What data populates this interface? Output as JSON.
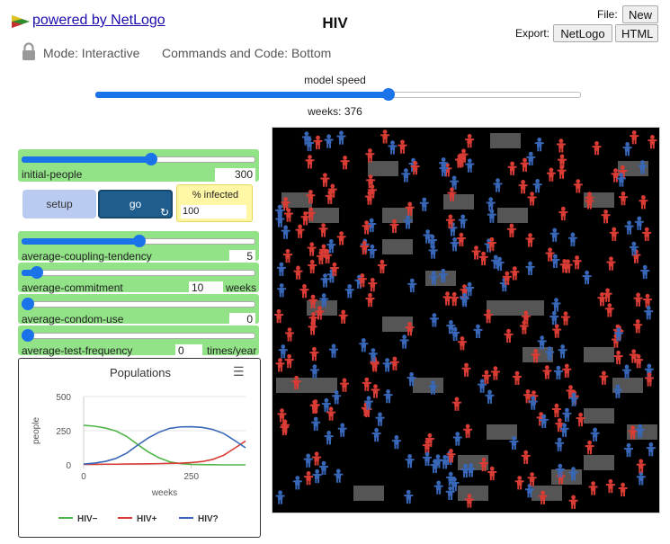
{
  "header": {
    "powered_by": "powered by NetLogo",
    "title": "HIV",
    "file_label": "File:",
    "new_label": "New",
    "export_label": "Export:",
    "export_netlogo": "NetLogo",
    "export_html": "HTML",
    "mode": "Mode: Interactive",
    "commands": "Commands and Code: Bottom"
  },
  "speed": {
    "label": "model speed",
    "ticks_text": "weeks: 376",
    "value_fraction": 0.61
  },
  "sliders": [
    {
      "name": "initial-people",
      "value": "300",
      "unit": "",
      "fraction": 0.56
    },
    {
      "name": "average-coupling-tendency",
      "value": "5",
      "unit": "",
      "fraction": 0.5
    },
    {
      "name": "average-commitment",
      "value": "10",
      "unit": "weeks",
      "fraction": 0.05
    },
    {
      "name": "average-condom-use",
      "value": "0",
      "unit": "",
      "fraction": 0.0
    },
    {
      "name": "average-test-frequency",
      "value": "0",
      "unit": "times/year",
      "fraction": 0.0
    }
  ],
  "buttons": {
    "setup": "setup",
    "go": "go",
    "go_icon": "forever-icon"
  },
  "monitor": {
    "label": "% infected",
    "value": "100"
  },
  "colors": {
    "slider_bg": "#92e287",
    "accent": "#1a73e8",
    "hiv_neg": "#50b548",
    "hiv_pos": "#d93c35",
    "hiv_unknown": "#3867b8",
    "patch_couple": "#555555"
  },
  "chart_data": {
    "type": "line",
    "title": "Populations",
    "xlabel": "weeks",
    "ylabel": "people",
    "xlim": [
      0,
      376
    ],
    "ylim": [
      0,
      500
    ],
    "x_ticks": [
      "0",
      "250"
    ],
    "y_ticks": [
      "500",
      "250",
      "0"
    ],
    "legend_position": "bottom",
    "series": [
      {
        "name": "HIV−",
        "color": "#50b548",
        "x": [
          0,
          25,
          50,
          75,
          100,
          125,
          150,
          175,
          200,
          225,
          250,
          275,
          300,
          325,
          350,
          376
        ],
        "y": [
          290,
          283,
          270,
          248,
          208,
          150,
          95,
          52,
          22,
          9,
          4,
          2,
          1,
          0,
          0,
          0
        ]
      },
      {
        "name": "HIV+",
        "color": "#d93c35",
        "x": [
          0,
          25,
          50,
          75,
          100,
          125,
          150,
          175,
          200,
          225,
          250,
          275,
          300,
          325,
          350,
          376
        ],
        "y": [
          4,
          4,
          5,
          5,
          6,
          7,
          8,
          9,
          11,
          13,
          17,
          24,
          40,
          70,
          120,
          175
        ]
      },
      {
        "name": "HIV?",
        "color": "#3867b8",
        "x": [
          0,
          25,
          50,
          75,
          100,
          125,
          150,
          175,
          200,
          225,
          250,
          275,
          300,
          325,
          350,
          376
        ],
        "y": [
          6,
          13,
          25,
          47,
          86,
          143,
          197,
          239,
          267,
          278,
          279,
          274,
          259,
          230,
          180,
          125
        ]
      }
    ]
  }
}
